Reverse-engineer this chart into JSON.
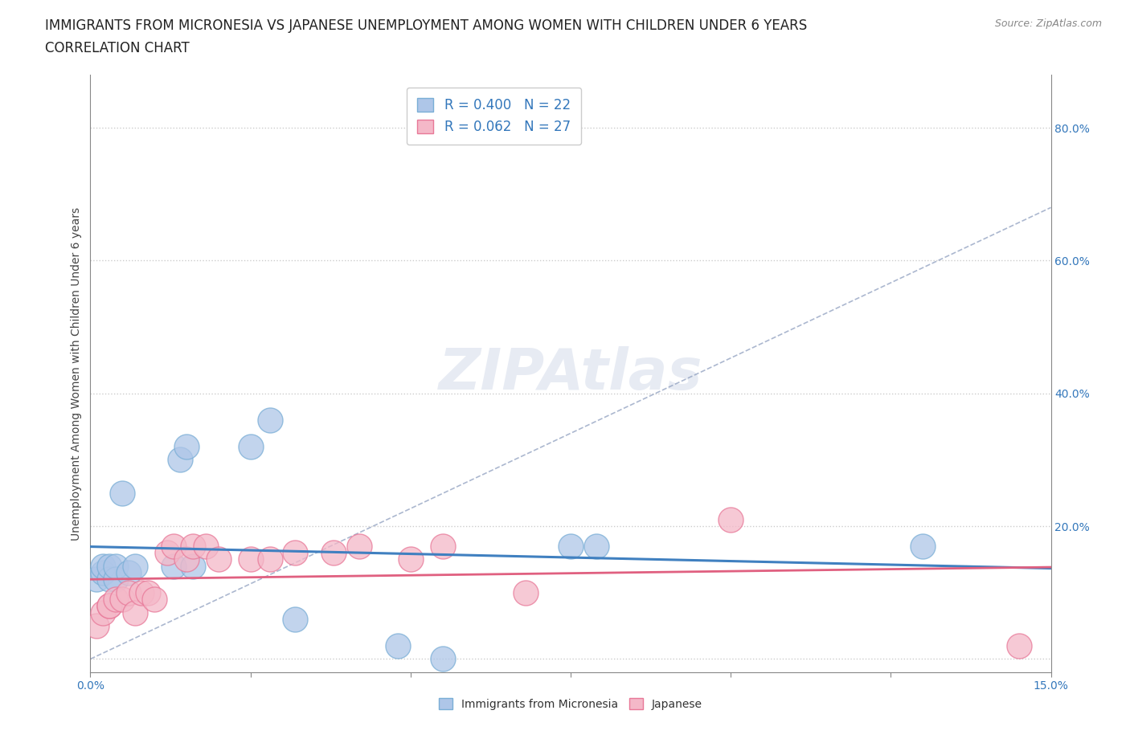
{
  "title_line1": "IMMIGRANTS FROM MICRONESIA VS JAPANESE UNEMPLOYMENT AMONG WOMEN WITH CHILDREN UNDER 6 YEARS",
  "title_line2": "CORRELATION CHART",
  "source": "Source: ZipAtlas.com",
  "xlim": [
    0.0,
    0.15
  ],
  "ylim": [
    -0.02,
    0.88
  ],
  "ylabel": "Unemployment Among Women with Children Under 6 years",
  "R_micronesia": 0.4,
  "N_micronesia": 22,
  "R_japanese": 0.062,
  "N_japanese": 27,
  "micronesia_color": "#aec6e8",
  "micronesia_edge": "#7aaed6",
  "japanese_color": "#f4b8c8",
  "japanese_edge": "#e87898",
  "trend_blue": "#4080c0",
  "trend_pink": "#e06080",
  "trend_gray": "#aaaacc",
  "background": "#ffffff",
  "grid_color": "#cccccc",
  "micronesia_x": [
    0.001,
    0.002,
    0.002,
    0.003,
    0.003,
    0.004,
    0.004,
    0.005,
    0.006,
    0.007,
    0.013,
    0.014,
    0.015,
    0.016,
    0.025,
    0.028,
    0.032,
    0.048,
    0.055,
    0.075,
    0.079,
    0.13
  ],
  "micronesia_y": [
    0.12,
    0.13,
    0.14,
    0.12,
    0.14,
    0.12,
    0.14,
    0.25,
    0.13,
    0.14,
    0.14,
    0.3,
    0.32,
    0.14,
    0.32,
    0.36,
    0.06,
    0.02,
    0.0,
    0.17,
    0.17,
    0.17
  ],
  "japanese_x": [
    0.001,
    0.002,
    0.003,
    0.003,
    0.004,
    0.005,
    0.006,
    0.007,
    0.008,
    0.009,
    0.01,
    0.012,
    0.013,
    0.015,
    0.016,
    0.018,
    0.02,
    0.025,
    0.028,
    0.032,
    0.038,
    0.042,
    0.05,
    0.055,
    0.068,
    0.1,
    0.145
  ],
  "japanese_y": [
    0.05,
    0.07,
    0.08,
    0.08,
    0.09,
    0.09,
    0.1,
    0.07,
    0.1,
    0.1,
    0.09,
    0.16,
    0.17,
    0.15,
    0.17,
    0.17,
    0.15,
    0.15,
    0.15,
    0.16,
    0.16,
    0.17,
    0.15,
    0.17,
    0.1,
    0.21,
    0.02
  ],
  "title_fontsize": 12,
  "subtitle_fontsize": 12,
  "axis_label_fontsize": 10,
  "tick_fontsize": 10,
  "legend_fontsize": 12
}
